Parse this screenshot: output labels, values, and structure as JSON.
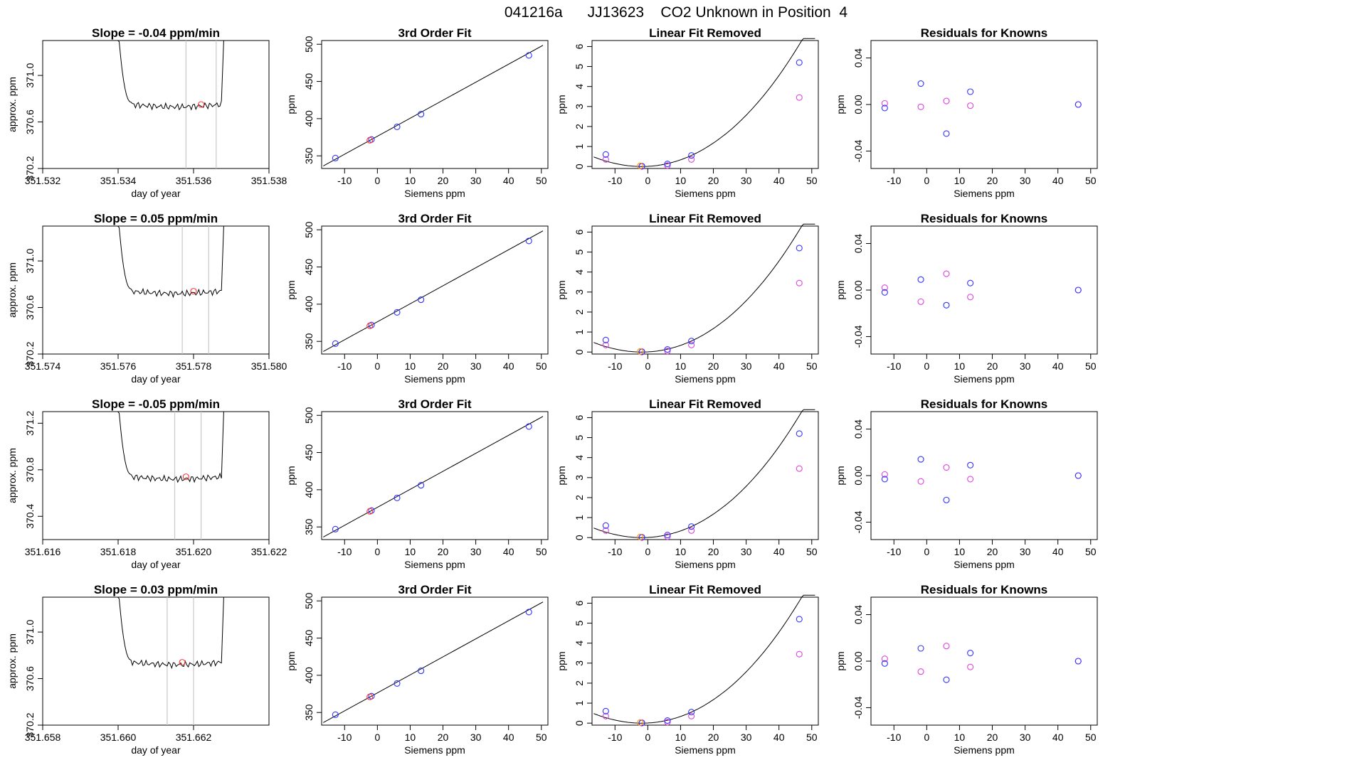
{
  "page_title": "041216a      JJ13623    CO2 Unknown in Position  4",
  "colors": {
    "known": "#3333ff",
    "unknown": "#ff3333",
    "residual2": "#dd44dd",
    "orange": "#ff9900",
    "ref_line": "#c8c8c8",
    "axis": "#000000"
  },
  "axis_labels": {
    "time_x": "day of year",
    "time_y": "approx. ppm",
    "siemens_x": "Siemens ppm",
    "ppm_y": "ppm"
  },
  "titles": {
    "fit": "3rd Order Fit",
    "linear": "Linear Fit Removed",
    "residual": "Residuals for Knowns"
  },
  "rows": [
    {
      "slope_title": "Slope =  -0.04  ppm/min",
      "xlim": [
        351.532,
        351.538
      ],
      "xticks": [
        "351.532",
        "351.534",
        "351.536",
        "351.538"
      ],
      "ylim": [
        370.2,
        371.3
      ],
      "yticks": [
        "370.2",
        "370.6",
        "371.0"
      ],
      "vlines": [
        351.5358,
        351.5366
      ],
      "unknown_point": [
        351.5362,
        370.75
      ]
    },
    {
      "slope_title": "Slope =  0.05  ppm/min",
      "xlim": [
        351.574,
        351.58
      ],
      "xticks": [
        "351.574",
        "351.576",
        "351.578",
        "351.580"
      ],
      "ylim": [
        370.2,
        371.3
      ],
      "yticks": [
        "370.2",
        "370.6",
        "371.0"
      ],
      "vlines": [
        351.5777,
        351.5784
      ],
      "unknown_point": [
        351.578,
        370.74
      ]
    },
    {
      "slope_title": "Slope =  -0.05  ppm/min",
      "xlim": [
        351.616,
        351.622
      ],
      "xticks": [
        "351.616",
        "351.618",
        "351.620",
        "351.622"
      ],
      "ylim": [
        370.2,
        371.3
      ],
      "yticks": [
        "370.4",
        "370.8",
        "371.2"
      ],
      "vlines": [
        351.6195,
        351.6202
      ],
      "unknown_point": [
        351.6198,
        370.74
      ]
    },
    {
      "slope_title": "Slope =  0.03  ppm/min",
      "xlim": [
        351.658,
        351.664
      ],
      "xticks": [
        "351.658",
        "351.660",
        "351.662"
      ],
      "ylim": [
        370.2,
        371.3
      ],
      "yticks": [
        "370.2",
        "370.6",
        "371.0"
      ],
      "vlines": [
        351.6613,
        351.662
      ],
      "unknown_point": [
        351.6617,
        370.74
      ]
    }
  ],
  "chart_data": {
    "type": "scatter",
    "description_panels": [
      "time series",
      "3rd Order Fit",
      "Linear Fit Removed",
      "Residuals for Knowns"
    ],
    "fit": {
      "xlim": [
        -17,
        52
      ],
      "ylim": [
        333,
        505
      ],
      "xticks": [
        "-10",
        "0",
        "10",
        "20",
        "30",
        "40",
        "50"
      ],
      "yticks": [
        "350",
        "400",
        "450",
        "500"
      ],
      "known_x": [
        -12.8,
        -1.8,
        6,
        13.3,
        46.2
      ],
      "known_y": [
        347,
        372,
        389,
        406,
        485
      ],
      "unknown_x": [
        -2.3
      ],
      "unknown_y": [
        371
      ]
    },
    "linear": {
      "xlim": [
        -17,
        52
      ],
      "ylim": [
        -0.1,
        6.3
      ],
      "xticks": [
        "-10",
        "0",
        "10",
        "20",
        "30",
        "40",
        "50"
      ],
      "yticks": [
        "0",
        "1",
        "2",
        "3",
        "4",
        "5",
        "6"
      ],
      "known_x": [
        -12.8,
        -1.8,
        6,
        13.3,
        46.2
      ],
      "known_y": [
        0.6,
        0.02,
        0.13,
        0.55,
        5.2
      ],
      "alt_x": [
        -12.8,
        -1.8,
        6,
        13.3,
        46.2
      ],
      "alt_y": [
        0.35,
        0.0,
        0.05,
        0.35,
        3.45
      ],
      "unknown_x": [
        -2.3
      ],
      "unknown_y": [
        0.03
      ]
    },
    "residual": {
      "xlim": [
        -17,
        52
      ],
      "ylim": [
        -0.055,
        0.055
      ],
      "xticks": [
        "-10",
        "0",
        "10",
        "20",
        "30",
        "40",
        "50"
      ],
      "yticks": [
        "-0.04",
        "0.00",
        "0.04"
      ],
      "rows": [
        {
          "a_x": [
            -12.8,
            -1.8,
            6,
            13.3,
            46.2
          ],
          "a_y": [
            -0.003,
            0.018,
            -0.025,
            0.011,
            0.0
          ],
          "b_x": [
            -12.8,
            -1.8,
            6,
            13.3,
            46.2
          ],
          "b_y": [
            0.001,
            -0.002,
            0.003,
            -0.001,
            0.0
          ]
        },
        {
          "a_x": [
            -12.8,
            -1.8,
            6,
            13.3,
            46.2
          ],
          "a_y": [
            -0.002,
            0.009,
            -0.013,
            0.006,
            0.0
          ],
          "b_x": [
            -12.8,
            -1.8,
            6,
            13.3,
            46.2
          ],
          "b_y": [
            0.002,
            -0.01,
            0.014,
            -0.006,
            0.0
          ]
        },
        {
          "a_x": [
            -12.8,
            -1.8,
            6,
            13.3,
            46.2
          ],
          "a_y": [
            -0.003,
            0.014,
            -0.021,
            0.009,
            0.0
          ],
          "b_x": [
            -12.8,
            -1.8,
            6,
            13.3,
            46.2
          ],
          "b_y": [
            0.001,
            -0.005,
            0.007,
            -0.003,
            0.0
          ]
        },
        {
          "a_x": [
            -12.8,
            -1.8,
            6,
            13.3,
            46.2
          ],
          "a_y": [
            -0.002,
            0.011,
            -0.016,
            0.007,
            0.0
          ],
          "b_x": [
            -12.8,
            -1.8,
            6,
            13.3,
            46.2
          ],
          "b_y": [
            0.002,
            -0.009,
            0.013,
            -0.005,
            0.0
          ]
        }
      ]
    }
  }
}
